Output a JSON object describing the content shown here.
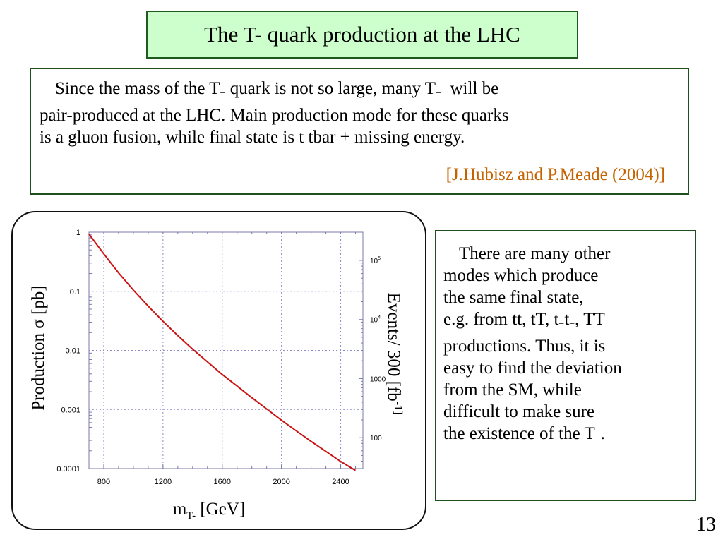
{
  "slide": {
    "title": "The T- quark production at the LHC",
    "intro": {
      "line1_pre": "Since the mass of the T",
      "sub1": "−",
      "line1_mid": " quark is not so large, many T",
      "sub2": "−",
      "line1_post": "  will be",
      "line2": "pair-produced at the LHC. Main production mode for these quarks",
      "line3": "is a gluon fusion, while final state is t tbar + missing energy.",
      "citation": "[J.Hubisz and P.Meade (2004)]"
    },
    "side_text": {
      "line1": "There are many other",
      "line2": "modes which produce",
      "line3": "the same final state,",
      "line4_pre": "e.g. from tt, tT, t",
      "line4_sub1": "−",
      "line4_mid": "t",
      "line4_sub2": "−",
      "line4_post": ", TT",
      "line5": "productions. Thus, it is",
      "line6": "easy to find the deviation",
      "line7": "from the SM, while",
      "line8": "difficult to make sure",
      "line9_pre": "the existence of the T",
      "line9_sub": "−",
      "line9_post": "."
    },
    "page_number": "13"
  },
  "chart_data": {
    "type": "line",
    "y_label_left": "Production σ [pb]",
    "y_label_right_main": "Events/ 300 [fb",
    "y_label_right_sup": "-1]",
    "x_label_main": "m",
    "x_label_sub": "T-",
    "x_label_unit": " [GeV]",
    "x_ticks": [
      800,
      1200,
      1600,
      2000,
      2400
    ],
    "x_tick_labels": [
      "800",
      "1200",
      "1600",
      "2000",
      "2400"
    ],
    "xlim": [
      700,
      2550
    ],
    "y_scale": "log",
    "ylim": [
      0.0001,
      1
    ],
    "y_ticks_left": [
      1,
      0.1,
      0.01,
      0.001,
      0.0001
    ],
    "y_tick_labels_left": [
      "1",
      "0.1",
      "0.01",
      "0.001",
      "0.0001"
    ],
    "y_ticks_right_events": [
      100000,
      10000,
      1000,
      100
    ],
    "y_tick_labels_right": [
      "10^5",
      "10^4",
      "1000",
      "100"
    ],
    "right_axis_luminosity_fb_inv": 300,
    "grid": true,
    "line_color": "#cc1111",
    "series": [
      {
        "x": [
          700,
          800,
          900,
          1000,
          1100,
          1200,
          1300,
          1400,
          1500,
          1600,
          1700,
          1800,
          1900,
          2000,
          2100,
          2200,
          2300,
          2400,
          2500
        ],
        "y": [
          0.93,
          0.43,
          0.205,
          0.105,
          0.056,
          0.031,
          0.0178,
          0.0105,
          0.0064,
          0.0039,
          0.0025,
          0.00158,
          0.00102,
          0.00066,
          0.000435,
          0.000289,
          0.000195,
          0.000132,
          9.3e-05
        ]
      }
    ]
  }
}
